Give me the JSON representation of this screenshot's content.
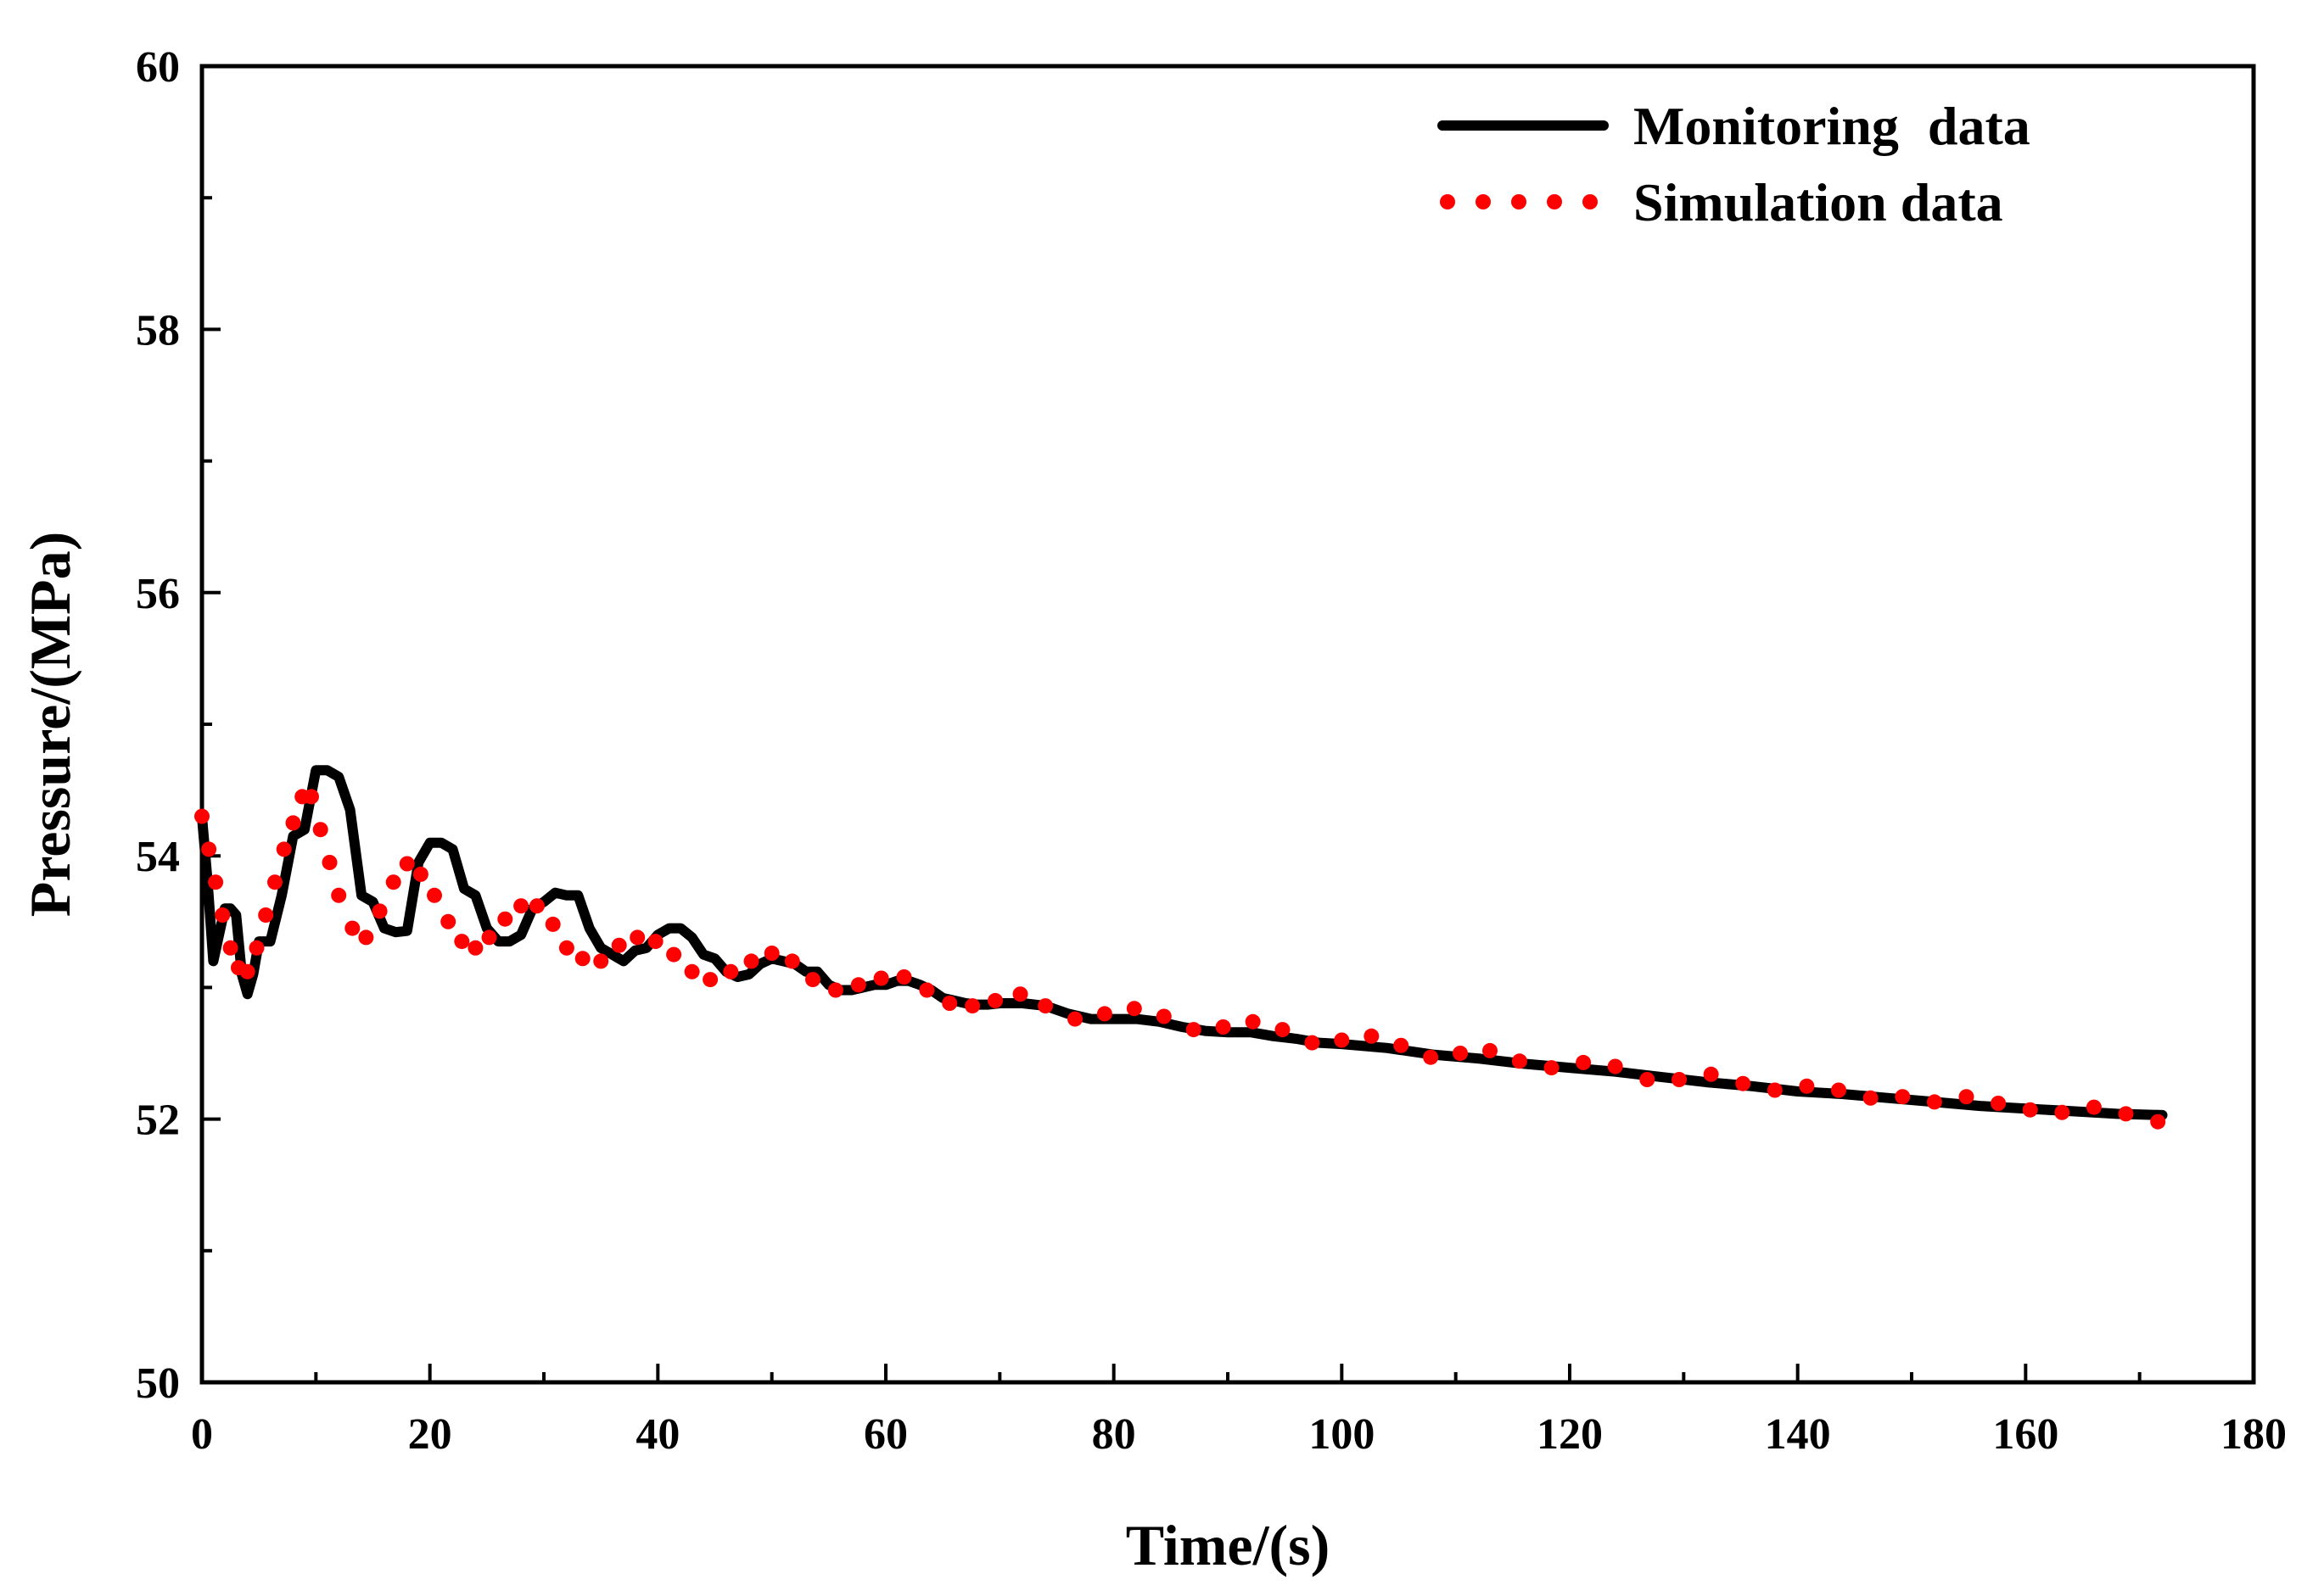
{
  "chart_data": {
    "type": "line",
    "title": "",
    "xlabel": "Time/(s)",
    "ylabel": "Pressure/(MPa)",
    "xlim": [
      0,
      180
    ],
    "ylim": [
      50,
      60
    ],
    "xticks": [
      0,
      20,
      40,
      60,
      80,
      100,
      120,
      140,
      160,
      180
    ],
    "yticks": [
      50,
      52,
      54,
      56,
      58,
      60
    ],
    "ytick_labels": [
      "50",
      "52",
      "54",
      "56",
      "58",
      "60"
    ],
    "xtick_labels": [
      "0",
      "20",
      "40",
      "60",
      "80",
      "100",
      "120",
      "140",
      "160",
      "180"
    ],
    "grid": false,
    "legend_position": "top-right",
    "series": [
      {
        "name": "Monitoring data",
        "style": "solid",
        "color": "#000000",
        "x": [
          0,
          0.5,
          1,
          1.5,
          2,
          2.5,
          3,
          3.5,
          4,
          4.5,
          5,
          6,
          7,
          8,
          9,
          10,
          11,
          12,
          13,
          14,
          15,
          16,
          17,
          18,
          19,
          20,
          21,
          22,
          23,
          24,
          25,
          26,
          27,
          28,
          29,
          30,
          31,
          32,
          33,
          34,
          35,
          36,
          37,
          38,
          39,
          40,
          41,
          42,
          43,
          44,
          45,
          46,
          47,
          48,
          49,
          50,
          51,
          52,
          53,
          54,
          55,
          56,
          57,
          58,
          59,
          60,
          61,
          62,
          63,
          64,
          65,
          66,
          67,
          68,
          69,
          70,
          72,
          74,
          76,
          78,
          80,
          82,
          84,
          86,
          88,
          90,
          92,
          94,
          96,
          98,
          100,
          104,
          108,
          112,
          116,
          120,
          124,
          128,
          132,
          136,
          140,
          144,
          148,
          152,
          156,
          160,
          164,
          168,
          172
        ],
        "values": [
          54.3,
          53.8,
          53.2,
          53.4,
          53.6,
          53.6,
          53.55,
          53.1,
          52.95,
          53.1,
          53.35,
          53.35,
          53.7,
          54.15,
          54.2,
          54.65,
          54.65,
          54.6,
          54.35,
          53.7,
          53.65,
          53.45,
          53.42,
          53.43,
          53.95,
          54.1,
          54.1,
          54.05,
          53.75,
          53.7,
          53.45,
          53.35,
          53.35,
          53.4,
          53.6,
          53.65,
          53.72,
          53.7,
          53.7,
          53.45,
          53.3,
          53.25,
          53.2,
          53.28,
          53.3,
          53.4,
          53.45,
          53.45,
          53.38,
          53.25,
          53.22,
          53.12,
          53.08,
          53.1,
          53.18,
          53.22,
          53.2,
          53.18,
          53.12,
          53.12,
          53.02,
          52.98,
          52.98,
          53.0,
          53.02,
          53.02,
          53.05,
          53.05,
          53.02,
          52.98,
          52.92,
          52.9,
          52.88,
          52.87,
          52.87,
          52.88,
          52.88,
          52.86,
          52.8,
          52.76,
          52.76,
          52.76,
          52.74,
          52.7,
          52.67,
          52.66,
          52.66,
          52.63,
          52.61,
          52.58,
          52.57,
          52.54,
          52.49,
          52.46,
          52.42,
          52.39,
          52.36,
          52.32,
          52.28,
          52.25,
          52.21,
          52.19,
          52.16,
          52.13,
          52.1,
          52.08,
          52.06,
          52.04,
          52.03
        ]
      },
      {
        "name": "Simulation data",
        "style": "dotted",
        "color": "#ff0000",
        "x": [
          0,
          0.6,
          1.2,
          1.8,
          2.5,
          3.2,
          4,
          4.8,
          5.6,
          6.4,
          7.2,
          8,
          8.8,
          9.6,
          10.4,
          11.2,
          12,
          13.2,
          14.4,
          15.6,
          16.8,
          18,
          19.2,
          20.4,
          21.6,
          22.8,
          24,
          25.2,
          26.6,
          28,
          29.4,
          30.8,
          32,
          33.4,
          35,
          36.6,
          38.2,
          39.8,
          41.4,
          43,
          44.6,
          46.4,
          48.2,
          50,
          51.8,
          53.6,
          55.6,
          57.6,
          59.6,
          61.6,
          63.6,
          65.6,
          67.6,
          69.6,
          71.8,
          74,
          76.6,
          79.2,
          81.8,
          84.4,
          87,
          89.6,
          92.2,
          94.8,
          97.4,
          100,
          102.6,
          105.2,
          107.8,
          110.4,
          113,
          115.6,
          118.4,
          121.2,
          124,
          126.8,
          129.6,
          132.4,
          135.2,
          138,
          140.8,
          143.6,
          146.4,
          149.2,
          152,
          154.8,
          157.6,
          160.4,
          163.2,
          166,
          168.8,
          171.6
        ],
        "values": [
          54.3,
          54.05,
          53.8,
          53.55,
          53.3,
          53.15,
          53.12,
          53.3,
          53.55,
          53.8,
          54.05,
          54.25,
          54.45,
          54.45,
          54.2,
          53.95,
          53.7,
          53.45,
          53.38,
          53.58,
          53.8,
          53.94,
          53.86,
          53.7,
          53.5,
          53.35,
          53.3,
          53.38,
          53.52,
          53.62,
          53.62,
          53.48,
          53.3,
          53.22,
          53.2,
          53.32,
          53.38,
          53.35,
          53.25,
          53.12,
          53.06,
          53.12,
          53.2,
          53.26,
          53.2,
          53.06,
          52.98,
          53.02,
          53.07,
          53.08,
          52.98,
          52.88,
          52.86,
          52.9,
          52.95,
          52.86,
          52.76,
          52.8,
          52.84,
          52.78,
          52.68,
          52.7,
          52.74,
          52.68,
          52.58,
          52.6,
          52.63,
          52.56,
          52.47,
          52.5,
          52.52,
          52.44,
          52.39,
          52.43,
          52.4,
          52.3,
          52.3,
          52.34,
          52.27,
          52.22,
          52.25,
          52.22,
          52.16,
          52.17,
          52.13,
          52.17,
          52.12,
          52.07,
          52.05,
          52.09,
          52.04,
          51.98
        ]
      }
    ]
  }
}
